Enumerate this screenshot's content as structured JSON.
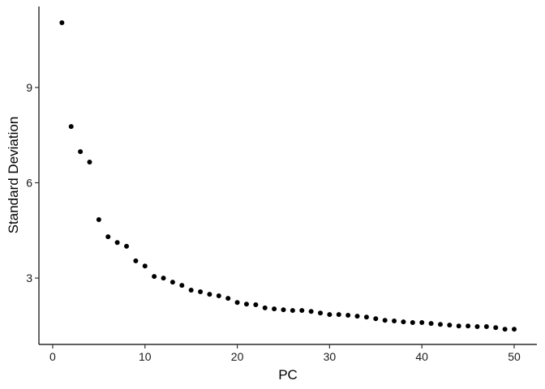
{
  "chart_data": {
    "type": "scatter",
    "x_label": "PC",
    "y_label": "Standard Deviation",
    "x": [
      1,
      2,
      3,
      4,
      5,
      6,
      7,
      8,
      9,
      10,
      11,
      12,
      13,
      14,
      15,
      16,
      17,
      18,
      19,
      20,
      21,
      22,
      23,
      24,
      25,
      26,
      27,
      28,
      29,
      30,
      31,
      32,
      33,
      34,
      35,
      36,
      37,
      38,
      39,
      40,
      41,
      42,
      43,
      44,
      45,
      46,
      47,
      48,
      49,
      50
    ],
    "series": [
      {
        "color": "#000000",
        "values": [
          11.04,
          7.77,
          6.98,
          6.65,
          4.84,
          4.3,
          4.12,
          4.0,
          3.54,
          3.38,
          3.05,
          3.0,
          2.87,
          2.77,
          2.62,
          2.57,
          2.49,
          2.44,
          2.36,
          2.23,
          2.18,
          2.16,
          2.06,
          2.03,
          2.0,
          1.98,
          1.98,
          1.95,
          1.9,
          1.85,
          1.85,
          1.83,
          1.8,
          1.77,
          1.72,
          1.67,
          1.65,
          1.62,
          1.6,
          1.6,
          1.57,
          1.54,
          1.52,
          1.49,
          1.49,
          1.47,
          1.47,
          1.44,
          1.39,
          1.39
        ]
      }
    ],
    "xlim": [
      -1.49,
      52.46
    ],
    "xticks": [
      0,
      10,
      20,
      30,
      40,
      50
    ],
    "ylim": [
      0.91,
      11.55
    ],
    "yticks": [
      3,
      6,
      9
    ],
    "grid": false
  }
}
